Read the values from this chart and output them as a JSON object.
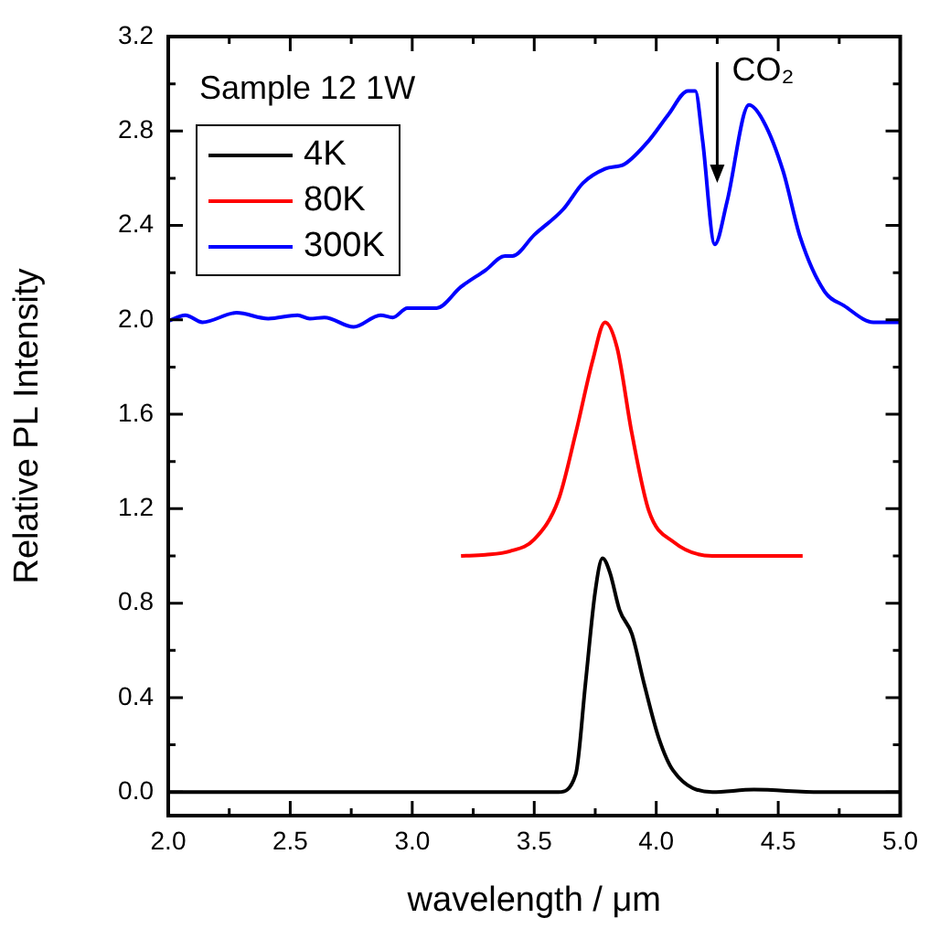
{
  "chart_data": {
    "type": "line",
    "xlabel": "wavelength / μm",
    "ylabel": "Relative PL Intensity",
    "annotations": [
      "Sample 12 1W",
      {
        "text": "CO₂",
        "x": 4.25,
        "y": 2.58
      }
    ],
    "xlim": [
      2,
      5
    ],
    "ylim": [
      -0.1,
      3.2
    ],
    "xticks": [
      {
        "value": 2,
        "label": "2.0"
      },
      {
        "value": 2.25,
        "label": null
      },
      2.5,
      {
        "value": 2.75,
        "label": null
      },
      {
        "value": 3,
        "label": "3.0"
      },
      {
        "value": 3.25,
        "label": null
      },
      3.5,
      {
        "value": 3.75,
        "label": null
      },
      {
        "value": 4,
        "label": "4.0"
      },
      {
        "value": 4.25,
        "label": null
      },
      4.5,
      {
        "value": 4.75,
        "label": null
      },
      {
        "value": 5,
        "label": "5.0"
      }
    ],
    "yticks": [
      {
        "value": 0,
        "label": "0.0"
      },
      {
        "value": 0.2,
        "label": null
      },
      0.4,
      {
        "value": 0.6,
        "label": null
      },
      0.8,
      {
        "value": 1,
        "label": null
      },
      1.2,
      {
        "value": 1.4,
        "label": null
      },
      1.6,
      {
        "value": 1.8,
        "label": null
      },
      {
        "value": 2,
        "label": "2.0"
      },
      {
        "value": 2.2,
        "label": null
      },
      2.4,
      {
        "value": 2.6,
        "label": null
      },
      2.8,
      {
        "value": 3,
        "label": null
      },
      3.2
    ],
    "grid": false,
    "legend": "top left",
    "marker": "none",
    "line_style": "solid",
    "series": [
      {
        "name": "4K",
        "color": "#000000",
        "x": [
          2.0,
          3.6,
          3.67,
          3.71,
          3.75,
          3.78,
          3.81,
          3.85,
          3.9,
          3.95,
          4.01,
          4.07,
          4.23,
          4.4,
          4.67,
          5.0
        ],
        "values": [
          0,
          0,
          0.075,
          0.46,
          0.85,
          0.99,
          0.93,
          0.77,
          0.67,
          0.46,
          0.23,
          0.09,
          0,
          0.01,
          0,
          0
        ]
      },
      {
        "name": "80K",
        "color": "#ff0000",
        "x": [
          3.2,
          3.3,
          3.4,
          3.5,
          3.6,
          3.67,
          3.74,
          3.79,
          3.84,
          3.9,
          3.97,
          4.07,
          4.23,
          4.6
        ],
        "values": [
          1.0,
          1.005,
          1.02,
          1.07,
          1.24,
          1.52,
          1.83,
          1.99,
          1.88,
          1.52,
          1.19,
          1.06,
          1.0,
          1.0
        ]
      },
      {
        "name": "300K",
        "color": "#0000ff",
        "x": [
          2.0,
          2.07,
          2.14,
          2.28,
          2.41,
          2.53,
          2.58,
          2.64,
          2.76,
          2.87,
          2.92,
          2.98,
          3.1,
          3.2,
          3.3,
          3.38,
          3.41,
          3.5,
          3.62,
          3.7,
          3.79,
          3.87,
          3.97,
          4.05,
          4.13,
          4.16,
          4.19,
          4.24,
          4.29,
          4.38,
          4.44,
          4.52,
          4.59,
          4.69,
          4.77,
          4.89,
          5.0
        ],
        "values": [
          1.995,
          2.02,
          1.99,
          2.03,
          2.005,
          2.02,
          2.005,
          2.01,
          1.97,
          2.02,
          2.01,
          2.05,
          2.05,
          2.14,
          2.21,
          2.27,
          2.27,
          2.36,
          2.47,
          2.58,
          2.64,
          2.66,
          2.76,
          2.87,
          2.97,
          2.97,
          2.76,
          2.32,
          2.5,
          2.91,
          2.84,
          2.63,
          2.35,
          2.12,
          2.06,
          1.99,
          1.99
        ]
      }
    ]
  }
}
